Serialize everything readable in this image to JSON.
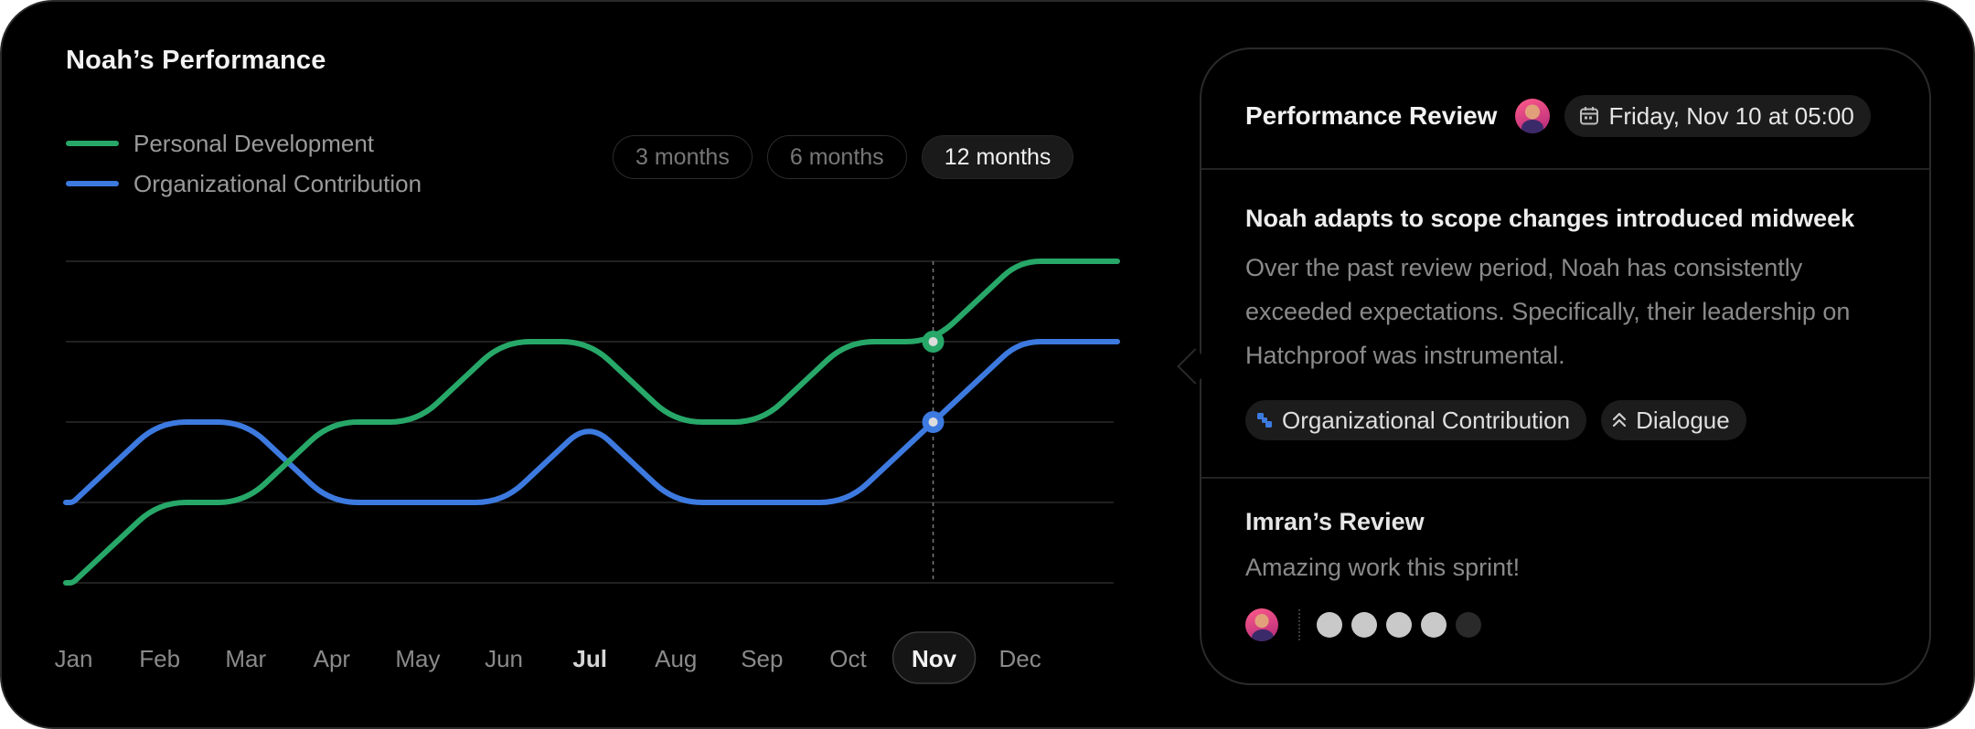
{
  "page_title": "Noah’s Performance",
  "legend": [
    {
      "label": "Personal Development",
      "color": "#27a869"
    },
    {
      "label": "Organizational Contribution",
      "color": "#3d7ae0"
    }
  ],
  "ranges": [
    {
      "label": "3 months",
      "active": false
    },
    {
      "label": "6 months",
      "active": false
    },
    {
      "label": "12 months",
      "active": true
    }
  ],
  "chart_data": {
    "type": "line",
    "categories": [
      "Jan",
      "Feb",
      "Mar",
      "Apr",
      "May",
      "Jun",
      "Jul",
      "Aug",
      "Sep",
      "Oct",
      "Nov",
      "Dec"
    ],
    "selected_category": "Nov",
    "ylim": [
      0,
      4
    ],
    "grid": true,
    "legend_position": "top-left",
    "series": [
      {
        "name": "Personal Development",
        "color": "#27a869",
        "points": [
          [
            0.5,
            0
          ],
          [
            1.5,
            1
          ],
          [
            2.5,
            1
          ],
          [
            3.5,
            2
          ],
          [
            4.5,
            2
          ],
          [
            5.5,
            3
          ],
          [
            6.5,
            3
          ],
          [
            7.5,
            2
          ],
          [
            8.5,
            2
          ],
          [
            9.5,
            3
          ],
          [
            10.5,
            3
          ],
          [
            11.5,
            4
          ],
          [
            12,
            4
          ]
        ],
        "highlight": [
          10.5,
          3
        ]
      },
      {
        "name": "Organizational Contribution",
        "color": "#3d7ae0",
        "points": [
          [
            0.5,
            1
          ],
          [
            1.5,
            2
          ],
          [
            2.5,
            2
          ],
          [
            3.5,
            1
          ],
          [
            5.5,
            1
          ],
          [
            6.5,
            2
          ],
          [
            7.5,
            1
          ],
          [
            9.5,
            1
          ],
          [
            10.5,
            2
          ],
          [
            11.5,
            3
          ],
          [
            12,
            3
          ]
        ],
        "highlight": [
          10.5,
          2
        ]
      }
    ]
  },
  "panel": {
    "title": "Performance Review",
    "date": "Friday, Nov 10 at 05:00",
    "note_title": "Noah adapts to scope changes introduced midweek",
    "note_body": "Over the past review period, Noah has consistently exceeded expectations. Specifically, their leadership on Hatchproof was instrumental.",
    "tags": [
      {
        "label": "Organizational Contribution",
        "icon": "puzzle-icon"
      },
      {
        "label": "Dialogue",
        "icon": "chevrons-up-icon"
      }
    ],
    "review_title": "Imran’s Review",
    "review_body": "Amazing work this sprint!",
    "rating": {
      "value": 4,
      "max": 5
    }
  }
}
